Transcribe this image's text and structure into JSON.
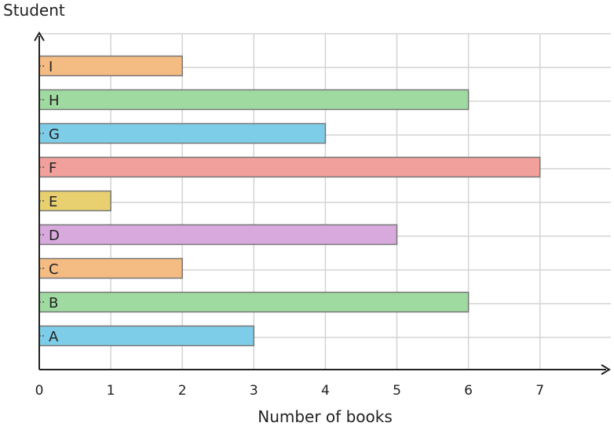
{
  "chart_data": {
    "type": "bar",
    "orientation": "horizontal",
    "ylabel": "Student",
    "xlabel": "Number of books",
    "categories": [
      "A",
      "B",
      "C",
      "D",
      "E",
      "F",
      "G",
      "H",
      "I"
    ],
    "values": [
      3,
      6,
      2,
      5,
      1,
      7,
      4,
      6,
      2
    ],
    "colors": [
      "#7ecde8",
      "#9fdba0",
      "#f4bb83",
      "#d7a9dc",
      "#e8d070",
      "#f2a09c",
      "#7ecde8",
      "#9fdba0",
      "#f4bb83"
    ],
    "xlim": [
      0,
      7.9
    ],
    "xticks": [
      "0",
      "1",
      "2",
      "3",
      "4",
      "5",
      "6",
      "7"
    ],
    "grid": true,
    "legend": "none"
  }
}
